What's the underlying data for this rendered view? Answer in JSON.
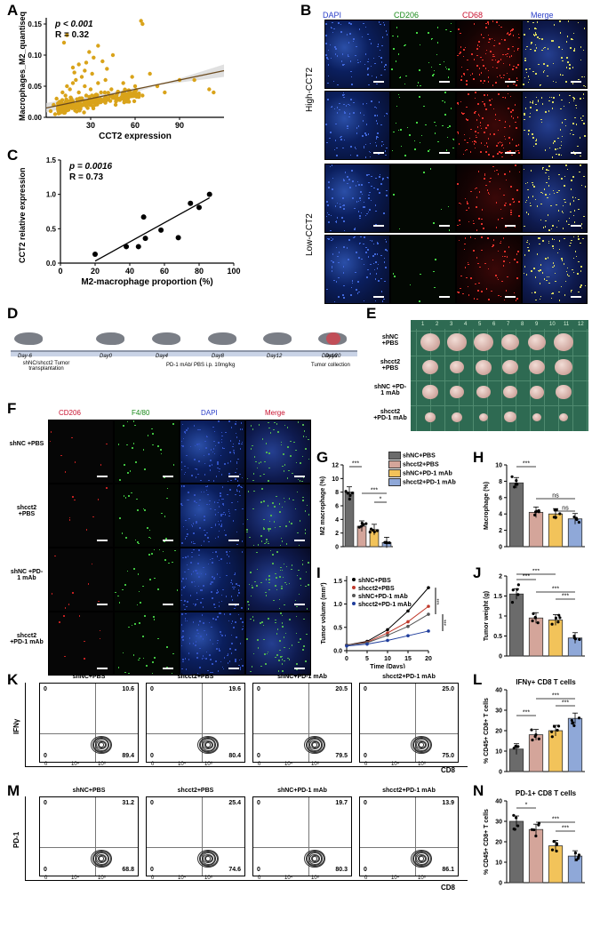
{
  "panel_letters": {
    "A": "A",
    "B": "B",
    "C": "C",
    "D": "D",
    "E": "E",
    "F": "F",
    "G": "G",
    "H": "H",
    "I": "I",
    "J": "J",
    "K": "K",
    "L": "L",
    "M": "M",
    "N": "N"
  },
  "panelA": {
    "stats": {
      "p": "p < 0.001",
      "r": "R = 0.32"
    },
    "ylabel": "Macrophages_M2_quantiseq",
    "xlabel": "CCT2 expression",
    "xticks": [
      "30",
      "60",
      "90"
    ],
    "yticks": [
      "0.00",
      "0.05",
      "0.10",
      "0.15"
    ]
  },
  "panelB": {
    "headers": [
      "DAPI",
      "CD206",
      "CD68",
      "Merge"
    ],
    "header_colors": [
      "#2b3fc8",
      "#1a8a1a",
      "#c8102e",
      "#2b3fc8"
    ],
    "groups": [
      "High-CCT2",
      "Low-CCT2"
    ]
  },
  "panelC": {
    "stats": {
      "p": "p = 0.0016",
      "r": "R = 0.73"
    },
    "ylabel": "CCT2 relative expression",
    "xlabel": "M2-macrophage proportion (%)",
    "xticks": [
      "0",
      "20",
      "40",
      "60",
      "80",
      "100"
    ],
    "yticks": [
      "0.0",
      "0.5",
      "1.0",
      "1.5"
    ]
  },
  "panelD": {
    "days": [
      "Day-6",
      "Day0",
      "Day4",
      "Day8",
      "Day12",
      "Day16",
      "Day20"
    ],
    "notes": {
      "transplant": "shNC/shcct2 Tumor transplantation",
      "treat": "PD-1 mAb/ PBS i.p. 10mg/kg",
      "collect": "Tumor collection"
    }
  },
  "panelE": {
    "rows": [
      "shNC +PBS",
      "shcct2 +PBS",
      "shNC +PD-1 mAb",
      "shcct2 +PD-1 mAb"
    ],
    "ruler": [
      "1",
      "2",
      "3",
      "4",
      "5",
      "6",
      "7",
      "8",
      "9",
      "10",
      "11",
      "12"
    ]
  },
  "panelF": {
    "headers": [
      "CD206",
      "F4/80",
      "DAPI",
      "Merge"
    ],
    "header_colors": [
      "#c8102e",
      "#1a8a1a",
      "#2b3fc8",
      "#c8102e"
    ],
    "rows": [
      "shNC +PBS",
      "shcct2 +PBS",
      "shNC +PD-1 mAb",
      "shcct2 +PD-1 mAb"
    ]
  },
  "legend": {
    "items": [
      "shNC+PBS",
      "shcct2+PBS",
      "shNC+PD-1 mAb",
      "shcct2+PD-1 mAb"
    ],
    "colors": [
      "#6b6b6b",
      "#d4a59a",
      "#f2c35a",
      "#8fa8d8"
    ]
  },
  "panelK": {
    "ylabel": "IFNγ",
    "xlabel": "CD8",
    "groups": [
      "shNC+PBS",
      "shcct2+PBS",
      "shNC+PD-1 mAb",
      "shcct2+PD-1 mAb"
    ],
    "ur": [
      "10.6",
      "19.6",
      "20.5",
      "25.0"
    ],
    "lr": [
      "89.4",
      "80.4",
      "79.5",
      "75.0"
    ],
    "ul": [
      "0",
      "0",
      "0",
      "0"
    ],
    "ll": [
      "0",
      "0",
      "0",
      "0"
    ],
    "xticks": [
      "0",
      "10⁴",
      "10⁶"
    ]
  },
  "panelM": {
    "ylabel": "PD-1",
    "xlabel": "CD8",
    "groups": [
      "shNC+PBS",
      "shcct2+PBS",
      "shNC+PD-1 mAb",
      "shcct2+PD-1 mAb"
    ],
    "ur": [
      "31.2",
      "25.4",
      "19.7",
      "13.9"
    ],
    "lr": [
      "68.8",
      "74.6",
      "80.3",
      "86.1"
    ],
    "ul": [
      "0",
      "0",
      "0",
      "0"
    ],
    "ll": [
      "0",
      "0",
      "0",
      "0"
    ],
    "xticks": [
      "0",
      "10⁴",
      "10⁶"
    ]
  },
  "chart_data": [
    {
      "id": "A",
      "type": "scatter",
      "xlabel": "CCT2 expression",
      "ylabel": "Macrophages_M2_quantiseq",
      "xlim": [
        0,
        120
      ],
      "ylim": [
        0,
        0.16
      ],
      "points_x": [
        3,
        5,
        6,
        7,
        8,
        9,
        10,
        11,
        12,
        13,
        14,
        15,
        16,
        17,
        18,
        19,
        20,
        21,
        22,
        23,
        24,
        25,
        26,
        27,
        28,
        30,
        31,
        33,
        35,
        37,
        40,
        44,
        48,
        52,
        56,
        60,
        65,
        70,
        75,
        80,
        90,
        100,
        110,
        113,
        58,
        64,
        65,
        14,
        12,
        35,
        32,
        45,
        29,
        38,
        27,
        22,
        18,
        41,
        26,
        19
      ],
      "points_y": [
        0.01,
        0.02,
        0.005,
        0.03,
        0.015,
        0.025,
        0.01,
        0.04,
        0.02,
        0.035,
        0.05,
        0.012,
        0.045,
        0.03,
        0.055,
        0.02,
        0.06,
        0.025,
        0.04,
        0.03,
        0.065,
        0.02,
        0.05,
        0.035,
        0.015,
        0.045,
        0.07,
        0.03,
        0.055,
        0.04,
        0.06,
        0.045,
        0.03,
        0.055,
        0.04,
        0.05,
        0.035,
        0.07,
        0.05,
        0.04,
        0.06,
        0.06,
        0.045,
        0.04,
        0.065,
        0.155,
        0.15,
        0.132,
        0.12,
        0.115,
        0.096,
        0.1,
        0.105,
        0.09,
        0.088,
        0.085,
        0.08,
        0.078,
        0.075,
        0.072
      ],
      "fit": {
        "x": [
          0,
          120
        ],
        "y": [
          0.015,
          0.075
        ]
      }
    },
    {
      "id": "C",
      "type": "scatter",
      "xlabel": "M2-macrophage proportion (%)",
      "ylabel": "CCT2 relative expression",
      "xlim": [
        0,
        100
      ],
      "ylim": [
        0,
        1.5
      ],
      "points_x": [
        20,
        38,
        45,
        48,
        49,
        58,
        68,
        75,
        80,
        86
      ],
      "points_y": [
        0.13,
        0.24,
        0.24,
        0.67,
        0.36,
        0.48,
        0.37,
        0.87,
        0.81,
        1.0
      ],
      "fit": {
        "x": [
          20,
          86
        ],
        "y": [
          0.03,
          0.95
        ]
      }
    },
    {
      "id": "G",
      "type": "bar",
      "ylabel": "M2 macrophage (%)",
      "categories": [
        "shNC+PBS",
        "shcct2+PBS",
        "shNC+PD-1 mAb",
        "shcct2+PD-1 mAb"
      ],
      "values": [
        8,
        3,
        2.5,
        0.6
      ],
      "ylim": [
        0,
        12
      ],
      "yticks": [
        0,
        2,
        4,
        6,
        8,
        10,
        12
      ],
      "significance": [
        "***",
        "***",
        "*"
      ]
    },
    {
      "id": "H",
      "type": "bar",
      "ylabel": "Macrophage (%)",
      "categories": [
        "shNC+PBS",
        "shcct2+PBS",
        "shNC+PD-1 mAb",
        "shcct2+PD-1 mAb"
      ],
      "values": [
        7.8,
        4.2,
        4.0,
        3.4
      ],
      "ylim": [
        0,
        10
      ],
      "yticks": [
        0,
        2,
        4,
        6,
        8,
        10
      ],
      "significance": [
        "***",
        "ns",
        "ns"
      ]
    },
    {
      "id": "I",
      "type": "line",
      "xlabel": "Time (Days)",
      "ylabel": "Tumor volume (mm³)",
      "x": [
        0,
        5,
        10,
        15,
        20
      ],
      "ylim": [
        0,
        1.6
      ],
      "yticks": [
        0.0,
        0.5,
        1.0,
        1.5
      ],
      "series": [
        {
          "name": "shNC+PBS",
          "values": [
            0.12,
            0.2,
            0.45,
            0.85,
            1.35
          ]
        },
        {
          "name": "shcct2+PBS",
          "values": [
            0.12,
            0.18,
            0.38,
            0.62,
            0.95
          ]
        },
        {
          "name": "shNC+PD-1 mAb",
          "values": [
            0.12,
            0.17,
            0.33,
            0.52,
            0.78
          ]
        },
        {
          "name": "shcct2+PD-1 mAb",
          "values": [
            0.1,
            0.14,
            0.22,
            0.32,
            0.42
          ]
        }
      ],
      "significance": [
        "***",
        "***"
      ]
    },
    {
      "id": "J",
      "type": "bar",
      "ylabel": "Tumor weight (g)",
      "categories": [
        "shNC+PBS",
        "shcct2+PBS",
        "shNC+PD-1 mAb",
        "shcct2+PD-1 mAb"
      ],
      "values": [
        1.55,
        0.95,
        0.9,
        0.45
      ],
      "ylim": [
        0,
        2.0
      ],
      "yticks": [
        0.0,
        0.5,
        1.0,
        1.5,
        2.0
      ],
      "significance": [
        "***",
        "***",
        "***",
        "***"
      ]
    },
    {
      "id": "L",
      "type": "bar",
      "title": "IFNγ+ CD8 T cells",
      "ylabel": "% CD45+ CD8+ T cells",
      "categories": [
        "shNC+PBS",
        "shcct2+PBS",
        "shNC+PD-1 mAb",
        "shcct2+PD-1 mAb"
      ],
      "values": [
        11,
        18,
        20,
        26
      ],
      "ylim": [
        0,
        40
      ],
      "yticks": [
        0,
        10,
        20,
        30,
        40
      ],
      "significance": [
        "***",
        "***",
        "***"
      ]
    },
    {
      "id": "N",
      "type": "bar",
      "title": "PD-1+ CD8 T cells",
      "ylabel": "% CD45+ CD8+ T cells",
      "categories": [
        "shNC+PBS",
        "shcct2+PBS",
        "shNC+PD-1 mAb",
        "shcct2+PD-1 mAb"
      ],
      "values": [
        30,
        26,
        18,
        13
      ],
      "ylim": [
        0,
        40
      ],
      "yticks": [
        0,
        10,
        20,
        30,
        40
      ],
      "significance": [
        "*",
        "***",
        "***"
      ]
    }
  ]
}
